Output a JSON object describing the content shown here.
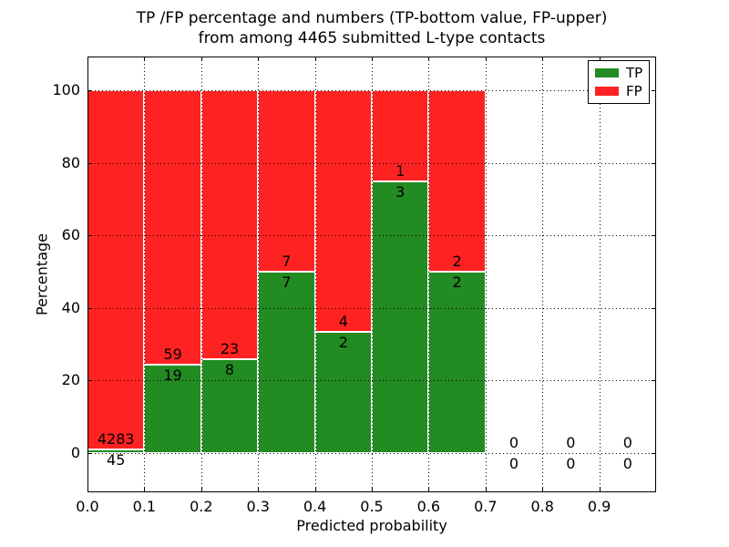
{
  "chart_data": {
    "type": "bar",
    "stacked": true,
    "orientation": "vertical",
    "title_lines": [
      "TP /FP percentage and numbers (TP-bottom value, FP-upper)",
      "from among 4465 submitted L-type contacts"
    ],
    "xlabel": "Predicted probability",
    "ylabel": "Percentage",
    "total_submitted": 4465,
    "x_tick_labels": [
      "0.0",
      "0.1",
      "0.2",
      "0.3",
      "0.4",
      "0.5",
      "0.6",
      "0.7",
      "0.8",
      "0.9"
    ],
    "y_ticks": [
      0,
      20,
      40,
      60,
      80,
      100
    ],
    "xlim": [
      0.0,
      1.0
    ],
    "ylim": [
      -11,
      109
    ],
    "bin_width": 0.1,
    "grid": {
      "style": "dotted",
      "color": "#000000",
      "drawn_over_bars": true
    },
    "bar_edge_color": "#ffffff",
    "series": [
      {
        "name": "TP",
        "color": "#228B22",
        "counts": [
          45,
          19,
          8,
          7,
          2,
          3,
          2,
          0,
          0,
          0
        ]
      },
      {
        "name": "FP",
        "color": "#FF2222",
        "counts": [
          4283,
          59,
          23,
          7,
          4,
          1,
          2,
          0,
          0,
          0
        ]
      }
    ],
    "tp_percentages": [
      1.0,
      24.4,
      25.8,
      50.0,
      33.3,
      75.0,
      50.0,
      0.0,
      0.0,
      0.0
    ],
    "legend": {
      "position": "upper-right",
      "items": [
        {
          "label": "TP",
          "color": "#228B22"
        },
        {
          "label": "FP",
          "color": "#FF2222"
        }
      ]
    }
  }
}
